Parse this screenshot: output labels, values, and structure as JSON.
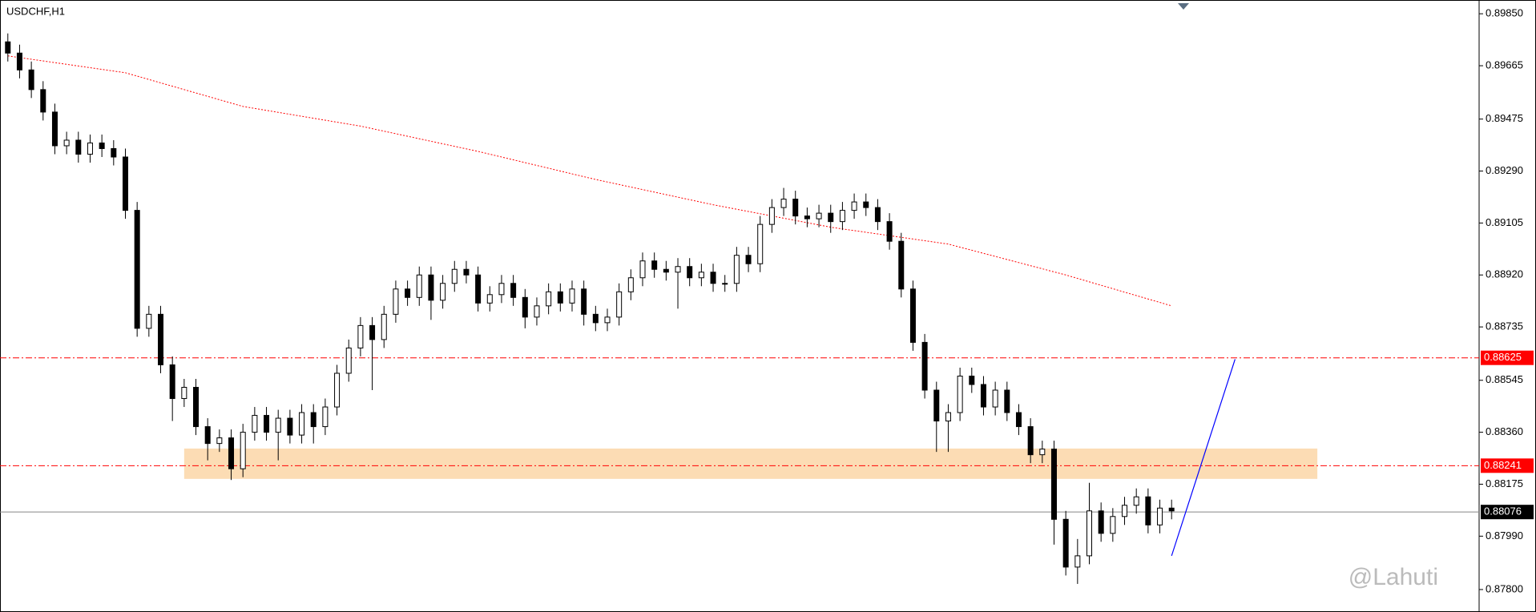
{
  "chart_data": {
    "type": "candlestick",
    "title": "USDCHF,H1",
    "open": [
      0.8975,
      0.8971,
      0.8965,
      0.8958,
      0.895,
      0.8938,
      0.894,
      0.8935,
      0.8939,
      0.8937,
      0.8934,
      0.8915,
      0.8873,
      0.8878,
      0.886,
      0.8848,
      0.8852,
      0.8838,
      0.8832,
      0.8834,
      0.8823,
      0.8836,
      0.8842,
      0.8836,
      0.8841,
      0.8835,
      0.8843,
      0.8838,
      0.8845,
      0.8857,
      0.8866,
      0.8874,
      0.8869,
      0.8878,
      0.8887,
      0.8884,
      0.8892,
      0.8883,
      0.8889,
      0.8894,
      0.8892,
      0.8882,
      0.8885,
      0.8889,
      0.8884,
      0.8877,
      0.8881,
      0.8886,
      0.8882,
      0.8887,
      0.8878,
      0.8875,
      0.8877,
      0.8886,
      0.8891,
      0.8897,
      0.8894,
      0.8893,
      0.8895,
      0.8891,
      0.8893,
      0.8889,
      0.8889,
      0.8899,
      0.8896,
      0.891,
      0.8916,
      0.8919,
      0.8913,
      0.8912,
      0.8914,
      0.8911,
      0.8915,
      0.8918,
      0.8916,
      0.8911,
      0.8904,
      0.8887,
      0.8868,
      0.8851,
      0.884,
      0.8843,
      0.8856,
      0.8853,
      0.8845,
      0.8851,
      0.8843,
      0.8838,
      0.8828,
      0.883,
      0.8805,
      0.8788,
      0.8792,
      0.8808,
      0.88,
      0.8806,
      0.881,
      0.8813,
      0.8803,
      0.8809
    ],
    "high": [
      0.8978,
      0.8974,
      0.8968,
      0.8961,
      0.8953,
      0.8943,
      0.8943,
      0.8942,
      0.8942,
      0.894,
      0.8937,
      0.8918,
      0.8881,
      0.8881,
      0.8863,
      0.8855,
      0.8855,
      0.8841,
      0.8837,
      0.8837,
      0.8839,
      0.8845,
      0.8845,
      0.8844,
      0.8844,
      0.8846,
      0.8846,
      0.8848,
      0.886,
      0.8869,
      0.8877,
      0.8877,
      0.8881,
      0.889,
      0.889,
      0.8895,
      0.8895,
      0.8892,
      0.8897,
      0.8897,
      0.8895,
      0.8888,
      0.8892,
      0.8892,
      0.8887,
      0.8884,
      0.8889,
      0.8889,
      0.889,
      0.889,
      0.8881,
      0.888,
      0.8889,
      0.8894,
      0.89,
      0.89,
      0.8897,
      0.8898,
      0.8898,
      0.8896,
      0.8896,
      0.8892,
      0.8902,
      0.8902,
      0.8913,
      0.8919,
      0.8923,
      0.8922,
      0.8916,
      0.8917,
      0.8917,
      0.8918,
      0.8921,
      0.8921,
      0.8919,
      0.8914,
      0.8907,
      0.889,
      0.8871,
      0.8854,
      0.8846,
      0.8859,
      0.8859,
      0.8856,
      0.8854,
      0.8854,
      0.8846,
      0.8841,
      0.8833,
      0.8833,
      0.8808,
      0.8798,
      0.8818,
      0.8811,
      0.8809,
      0.8813,
      0.8816,
      0.8816,
      0.8812,
      0.8812
    ],
    "low": [
      0.8968,
      0.8962,
      0.8955,
      0.8947,
      0.8935,
      0.8935,
      0.8932,
      0.8932,
      0.8934,
      0.8931,
      0.8912,
      0.887,
      0.887,
      0.8857,
      0.884,
      0.8845,
      0.8835,
      0.8826,
      0.8829,
      0.8819,
      0.882,
      0.8833,
      0.8833,
      0.8826,
      0.8832,
      0.8832,
      0.8832,
      0.8835,
      0.8842,
      0.8854,
      0.8863,
      0.8851,
      0.8866,
      0.8875,
      0.8881,
      0.8881,
      0.8876,
      0.888,
      0.8886,
      0.8889,
      0.8879,
      0.8879,
      0.8882,
      0.8881,
      0.8873,
      0.8874,
      0.8878,
      0.8879,
      0.8879,
      0.8874,
      0.8872,
      0.8872,
      0.8874,
      0.8883,
      0.8888,
      0.8891,
      0.889,
      0.888,
      0.8888,
      0.8888,
      0.8886,
      0.8886,
      0.8886,
      0.8893,
      0.8893,
      0.8907,
      0.8913,
      0.891,
      0.8909,
      0.8909,
      0.8907,
      0.8908,
      0.8912,
      0.8913,
      0.8908,
      0.8901,
      0.8884,
      0.8865,
      0.8848,
      0.8829,
      0.8829,
      0.884,
      0.885,
      0.8842,
      0.8842,
      0.884,
      0.8835,
      0.8825,
      0.8825,
      0.8796,
      0.8785,
      0.8782,
      0.8789,
      0.8797,
      0.8797,
      0.8803,
      0.8807,
      0.88,
      0.88,
      0.8805
    ],
    "close": [
      0.8971,
      0.8965,
      0.8958,
      0.895,
      0.8938,
      0.894,
      0.8935,
      0.8939,
      0.8937,
      0.8934,
      0.8915,
      0.8873,
      0.8878,
      0.886,
      0.8848,
      0.8852,
      0.8838,
      0.8832,
      0.8834,
      0.8823,
      0.8836,
      0.8842,
      0.8836,
      0.8841,
      0.8835,
      0.8843,
      0.8838,
      0.8845,
      0.8857,
      0.8866,
      0.8874,
      0.8869,
      0.8878,
      0.8887,
      0.8884,
      0.8892,
      0.8883,
      0.8889,
      0.8894,
      0.8892,
      0.8882,
      0.8885,
      0.8889,
      0.8884,
      0.8877,
      0.8881,
      0.8886,
      0.8882,
      0.8887,
      0.8878,
      0.8875,
      0.8877,
      0.8886,
      0.8891,
      0.8897,
      0.8894,
      0.8893,
      0.8895,
      0.8891,
      0.8893,
      0.8889,
      0.8889,
      0.8899,
      0.8896,
      0.891,
      0.8916,
      0.8919,
      0.8913,
      0.8912,
      0.8914,
      0.8911,
      0.8915,
      0.8918,
      0.8916,
      0.8911,
      0.8904,
      0.8887,
      0.8868,
      0.8851,
      0.884,
      0.8843,
      0.8856,
      0.8853,
      0.8845,
      0.8851,
      0.8843,
      0.8838,
      0.8828,
      0.883,
      0.8805,
      0.8788,
      0.8792,
      0.8808,
      0.88,
      0.8806,
      0.881,
      0.8813,
      0.8803,
      0.8809,
      0.8808
    ],
    "up_color": "#ffffff",
    "down_color": "#000000",
    "wick_color": "#000000",
    "ylim": [
      0.8772,
      0.89899
    ],
    "yticks": [
      {
        "value": 0.8985,
        "label": "0.89850"
      },
      {
        "value": 0.89665,
        "label": "0.89665"
      },
      {
        "value": 0.89475,
        "label": "0.89475"
      },
      {
        "value": 0.8929,
        "label": "0.89290"
      },
      {
        "value": 0.89105,
        "label": "0.89105"
      },
      {
        "value": 0.8892,
        "label": "0.88920"
      },
      {
        "value": 0.88735,
        "label": "0.88735"
      },
      {
        "value": 0.88545,
        "label": "0.88545"
      },
      {
        "value": 0.8836,
        "label": "0.88360"
      },
      {
        "value": 0.88175,
        "label": "0.88175"
      },
      {
        "value": 0.8799,
        "label": "0.87990"
      },
      {
        "value": 0.878,
        "label": "0.87800"
      }
    ],
    "ma": {
      "color": "#ff0000",
      "x": [
        0,
        10,
        20,
        30,
        40,
        50,
        60,
        70,
        80,
        90,
        99
      ],
      "values": [
        0.897,
        0.8964,
        0.8952,
        0.8945,
        0.8936,
        0.8926,
        0.8917,
        0.8909,
        0.8903,
        0.8892,
        0.8881
      ]
    },
    "levels": [
      {
        "value": 0.88625,
        "label": "0.88625",
        "color": "#ff0000",
        "style": "dashdot"
      },
      {
        "value": 0.88241,
        "label": "0.88241",
        "color": "#ff0000",
        "style": "dashdot"
      },
      {
        "value": 0.88076,
        "label": "0.88076",
        "color": "#000000",
        "style": "solid"
      }
    ],
    "zone": {
      "x": [
        15,
        111.4
      ],
      "values": [
        0.88302,
        0.88194
      ],
      "color": "#fcdcb4"
    },
    "trendline": {
      "x": [
        99,
        104.4
      ],
      "values": [
        0.8792,
        0.8862
      ],
      "color": "#0000ff"
    },
    "watermark": "@Lahuti"
  }
}
